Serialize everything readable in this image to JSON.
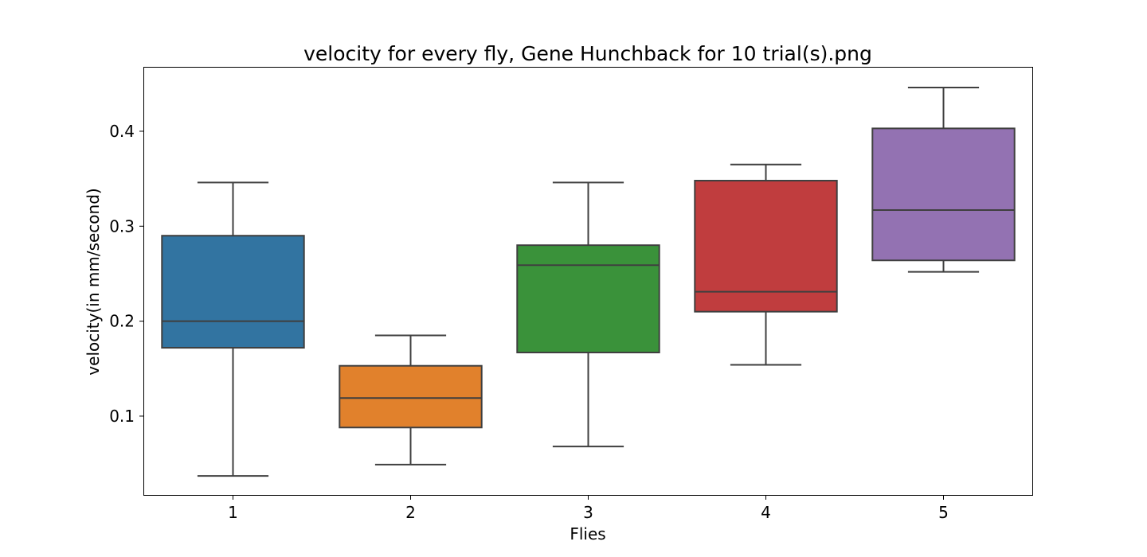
{
  "chart_data": {
    "type": "box",
    "title": "velocity for every fly, Gene Hunchback for 10 trial(s).png",
    "xlabel": "Flies",
    "ylabel": "velocity(in mm/second)",
    "ylim": [
      0.017,
      0.467
    ],
    "yticks": [
      0.1,
      0.2,
      0.3,
      0.4
    ],
    "ytick_labels": [
      "0.1",
      "0.2",
      "0.3",
      "0.4"
    ],
    "grid": false,
    "categories": [
      "1",
      "2",
      "3",
      "4",
      "5"
    ],
    "boxes": [
      {
        "category": "1",
        "whisker_low": 0.037,
        "q1": 0.172,
        "median": 0.2,
        "q3": 0.29,
        "whisker_high": 0.346,
        "color": "#3274a1"
      },
      {
        "category": "2",
        "whisker_low": 0.049,
        "q1": 0.088,
        "median": 0.119,
        "q3": 0.153,
        "whisker_high": 0.185,
        "color": "#e1812c"
      },
      {
        "category": "3",
        "whisker_low": 0.068,
        "q1": 0.167,
        "median": 0.259,
        "q3": 0.28,
        "whisker_high": 0.346,
        "color": "#3a923a"
      },
      {
        "category": "4",
        "whisker_low": 0.154,
        "q1": 0.21,
        "median": 0.231,
        "q3": 0.348,
        "whisker_high": 0.365,
        "color": "#c03d3e"
      },
      {
        "category": "5",
        "whisker_low": 0.252,
        "q1": 0.264,
        "median": 0.317,
        "q3": 0.403,
        "whisker_high": 0.446,
        "color": "#9372b2"
      }
    ]
  }
}
